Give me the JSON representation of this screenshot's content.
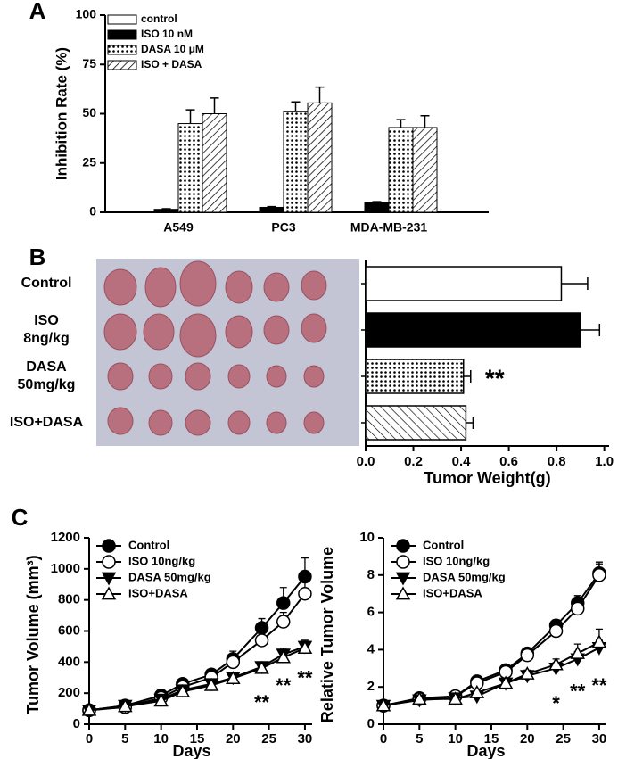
{
  "chart_data": [
    {
      "type": "bar",
      "panel": "A",
      "y_label": "Inhibition Rate (%)",
      "categories": [
        "A549",
        "PC3",
        "MDA-MB-231"
      ],
      "series": [
        {
          "name": "control",
          "fill": "#ffffff",
          "values": [
            0,
            0,
            0
          ],
          "errors": [
            0,
            0,
            0
          ]
        },
        {
          "name": "ISO 10 nM",
          "fill": "#000000",
          "values": [
            1.5,
            2.5,
            5
          ],
          "errors": [
            0.3,
            0.4,
            0.4
          ]
        },
        {
          "name": "DASA 10 μM",
          "fill": "dots",
          "values": [
            45,
            51,
            43
          ],
          "errors": [
            7,
            5,
            4
          ]
        },
        {
          "name": "ISO + DASA",
          "fill": "hatch",
          "values": [
            50,
            55.5,
            43
          ],
          "errors": [
            8,
            8,
            6
          ]
        }
      ],
      "ylim": [
        0,
        100
      ],
      "yticks": [
        0,
        25,
        50,
        75,
        100
      ]
    },
    {
      "type": "hbar",
      "panel": "B",
      "x_label": "Tumor Weight(g)",
      "categories": [
        "Control",
        "ISO\n8ng/kg",
        "DASA\n50mg/kg",
        "ISO+DASA"
      ],
      "values": [
        0.82,
        0.9,
        0.41,
        0.42
      ],
      "errors": [
        0.11,
        0.08,
        0.03,
        0.03
      ],
      "fills": [
        "#ffffff",
        "#000000",
        "dots",
        "hatch-back"
      ],
      "annotations": [
        {
          "text": "**",
          "category": 2,
          "x": 0.5
        }
      ],
      "xlim": [
        0,
        1.02
      ],
      "xticks": [
        {
          "value": 0,
          "label": "0.0"
        },
        {
          "value": 0.2,
          "label": "0.2"
        },
        {
          "value": 0.4,
          "label": "0.4"
        },
        {
          "value": 0.6,
          "label": "0.6"
        },
        {
          "value": 0.8,
          "label": "0.8"
        },
        {
          "value": 1,
          "label": "1.0"
        }
      ]
    },
    {
      "type": "line",
      "panel": "C",
      "y_label": "Tumor Volume (mm³)",
      "x_label": "Days",
      "x": [
        0,
        5,
        10,
        13,
        17,
        20,
        24,
        27,
        30
      ],
      "series": [
        {
          "name": "Control",
          "marker": "circle",
          "filled": true,
          "values": [
            90,
            120,
            185,
            260,
            320,
            420,
            620,
            780,
            950
          ],
          "errors": [
            15,
            15,
            20,
            20,
            25,
            50,
            60,
            100,
            120
          ]
        },
        {
          "name": "ISO 10ng/kg",
          "marker": "circle",
          "filled": false,
          "values": [
            90,
            110,
            170,
            240,
            300,
            400,
            540,
            660,
            840
          ],
          "errors": [
            15,
            15,
            20,
            20,
            25,
            40,
            50,
            60,
            80
          ]
        },
        {
          "name": "DASA 50mg/kg",
          "marker": "triangle-down",
          "filled": true,
          "values": [
            90,
            120,
            160,
            220,
            260,
            300,
            370,
            450,
            500
          ],
          "errors": [
            10,
            10,
            15,
            15,
            20,
            25,
            30,
            40,
            40
          ]
        },
        {
          "name": "ISO+DASA",
          "marker": "triangle-up",
          "filled": false,
          "values": [
            90,
            115,
            150,
            210,
            250,
            295,
            360,
            430,
            490
          ],
          "errors": [
            10,
            10,
            15,
            15,
            20,
            25,
            30,
            40,
            40
          ]
        }
      ],
      "annotations": [
        {
          "text": "**",
          "x": 24,
          "y": 130
        },
        {
          "text": "**",
          "x": 27,
          "y": 240
        },
        {
          "text": "**",
          "x": 30,
          "y": 290
        }
      ],
      "xlim": [
        0,
        31
      ],
      "xticks": [
        0,
        5,
        10,
        15,
        20,
        25,
        30
      ],
      "ylim": [
        0,
        1200
      ],
      "yticks": [
        0,
        200,
        400,
        600,
        800,
        1000,
        1200
      ]
    },
    {
      "type": "line",
      "y_label": "Relative Tumor Volume",
      "x_label": "Days",
      "x": [
        0,
        5,
        10,
        13,
        17,
        20,
        24,
        27,
        30
      ],
      "series": [
        {
          "name": "Control",
          "marker": "circle",
          "filled": true,
          "values": [
            1,
            1.4,
            1.5,
            2.3,
            2.9,
            3.8,
            5.3,
            6.5,
            8.1
          ],
          "errors": [
            0.1,
            0.1,
            0.15,
            0.15,
            0.2,
            0.2,
            0.3,
            0.4,
            0.6
          ]
        },
        {
          "name": "ISO 10ng/kg",
          "marker": "circle",
          "filled": false,
          "values": [
            1,
            1.35,
            1.5,
            2.2,
            2.8,
            3.7,
            5,
            6.2,
            8
          ],
          "errors": [
            0.1,
            0.1,
            0.15,
            0.15,
            0.2,
            0.2,
            0.3,
            0.3,
            0.6
          ]
        },
        {
          "name": "DASA 50mg/kg",
          "marker": "triangle-down",
          "filled": true,
          "values": [
            1,
            1.3,
            1.4,
            1.5,
            2.2,
            2.6,
            3,
            3.5,
            4.1
          ],
          "errors": [
            0.1,
            0.1,
            0.1,
            0.15,
            0.15,
            0.2,
            0.3,
            0.4,
            0.4
          ]
        },
        {
          "name": "ISO+DASA",
          "marker": "triangle-up",
          "filled": false,
          "values": [
            1,
            1.35,
            1.35,
            1.7,
            2.2,
            2.7,
            3.2,
            3.8,
            4.4
          ],
          "errors": [
            0.1,
            0.1,
            0.1,
            0.15,
            0.15,
            0.2,
            0.3,
            0.5,
            0.7
          ]
        }
      ],
      "annotations": [
        {
          "text": "*",
          "x": 24,
          "y": 1.05
        },
        {
          "text": "**",
          "x": 27,
          "y": 1.7
        },
        {
          "text": "**",
          "x": 30,
          "y": 2
        }
      ],
      "xlim": [
        0,
        31
      ],
      "xticks": [
        0,
        5,
        10,
        15,
        20,
        25,
        30
      ],
      "ylim": [
        0,
        10
      ],
      "yticks": [
        0,
        2,
        4,
        6,
        8,
        10
      ]
    }
  ]
}
